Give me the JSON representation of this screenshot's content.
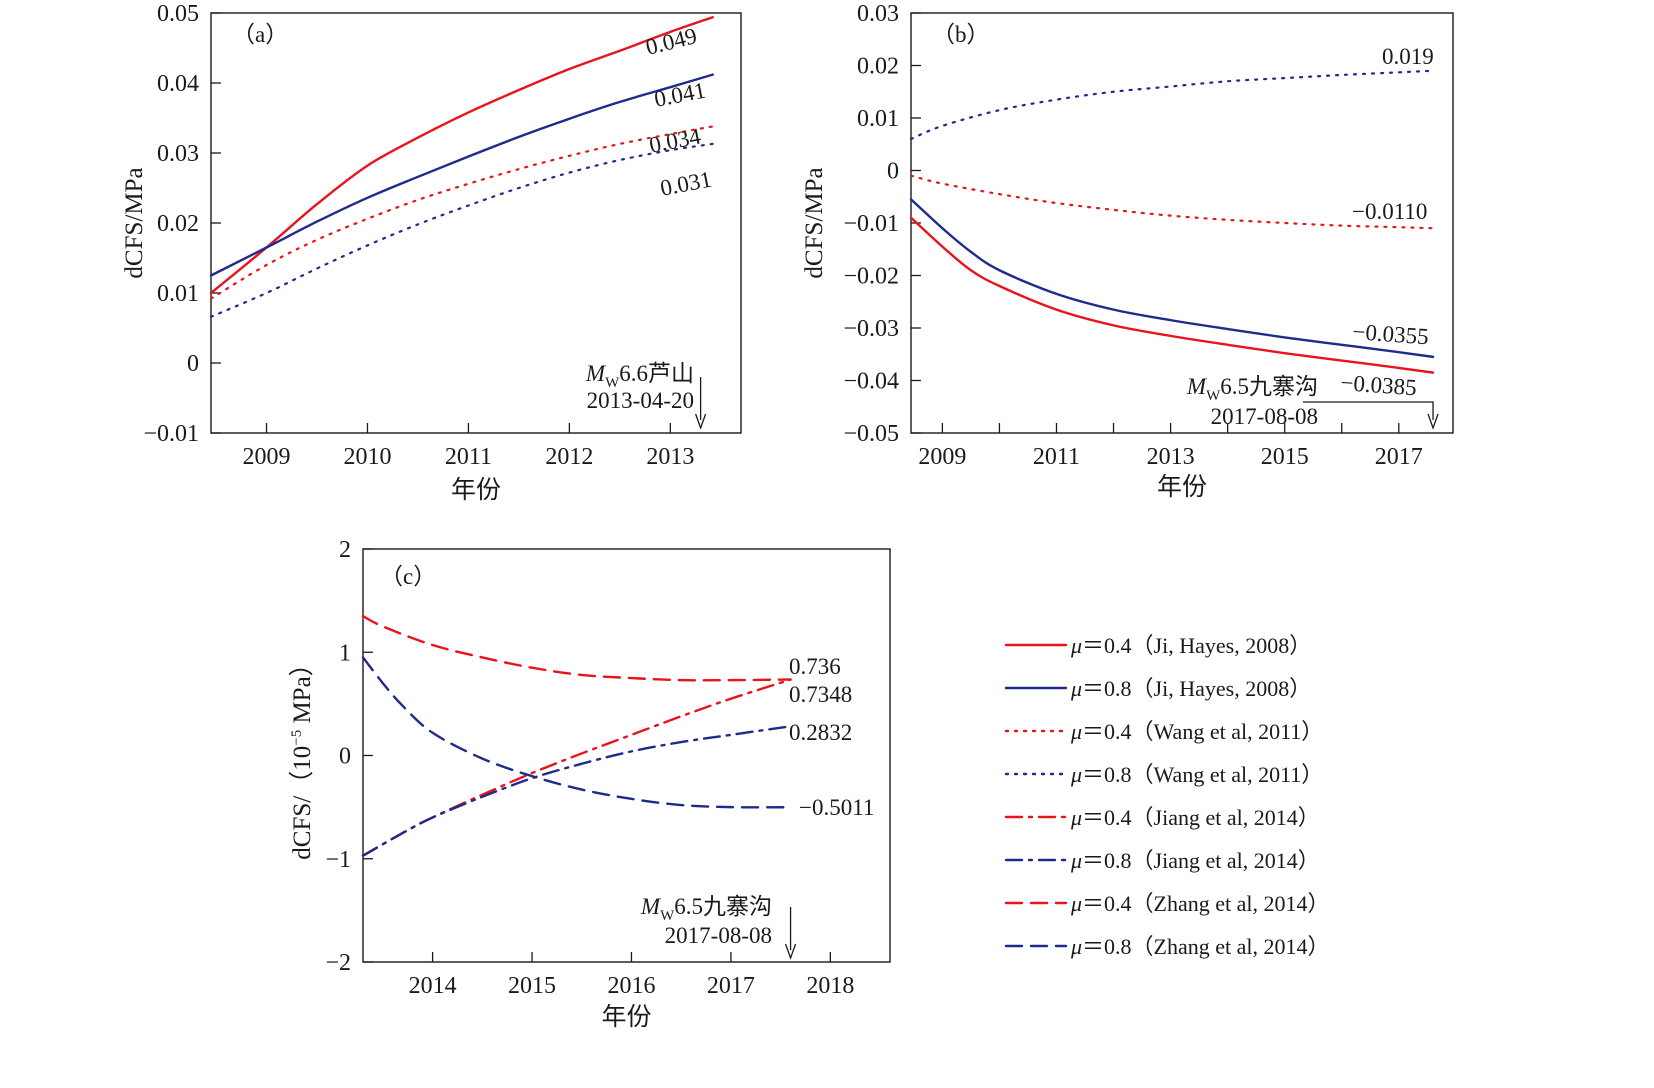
{
  "colors": {
    "red": "#e8141c",
    "blue": "#1e2b8c",
    "ink": "#1a1a1a"
  },
  "chart_data": [
    {
      "id": "a",
      "type": "line",
      "panel_label": "（a）",
      "xlabel": "年份",
      "ylabel": "dCFS/MPa",
      "xlim": [
        2008.45,
        2013.7
      ],
      "ylim": [
        -0.01,
        0.05
      ],
      "xticks": [
        2009,
        2010,
        2011,
        2012,
        2013
      ],
      "xtick_labels": [
        "2009",
        "2010",
        "2011",
        "2012",
        "2013"
      ],
      "yticks": [
        -0.01,
        0,
        0.01,
        0.02,
        0.03,
        0.04,
        0.05
      ],
      "ytick_labels": [
        "−0.01",
        "0",
        "0.01",
        "0.02",
        "0.03",
        "0.04",
        "0.05"
      ],
      "series": [
        {
          "key": "ji04",
          "color": "red",
          "dash": "solid",
          "x": [
            2008.45,
            2009.0,
            2009.5,
            2010.0,
            2010.5,
            2011.0,
            2011.5,
            2012.0,
            2012.5,
            2013.0,
            2013.42
          ],
          "y": [
            0.01,
            0.0165,
            0.0227,
            0.0282,
            0.0322,
            0.0358,
            0.039,
            0.042,
            0.0446,
            0.0473,
            0.0494
          ],
          "end_label": "0.049"
        },
        {
          "key": "ji08",
          "color": "blue",
          "dash": "solid",
          "x": [
            2008.45,
            2009.0,
            2009.5,
            2010.0,
            2010.5,
            2011.0,
            2011.5,
            2012.0,
            2012.5,
            2013.0,
            2013.42
          ],
          "y": [
            0.0125,
            0.0165,
            0.0202,
            0.0236,
            0.0266,
            0.0295,
            0.0323,
            0.0349,
            0.0373,
            0.0394,
            0.0412
          ],
          "end_label": "0.041"
        },
        {
          "key": "wang04",
          "color": "red",
          "dash": "dotted",
          "x": [
            2008.45,
            2009.0,
            2009.5,
            2010.0,
            2010.5,
            2011.0,
            2011.5,
            2012.0,
            2012.5,
            2013.0,
            2013.42
          ],
          "y": [
            0.0092,
            0.014,
            0.0176,
            0.0206,
            0.0233,
            0.0256,
            0.0277,
            0.0296,
            0.0313,
            0.0327,
            0.0338
          ],
          "end_label": "0.034"
        },
        {
          "key": "wang08",
          "color": "blue",
          "dash": "dotted",
          "x": [
            2008.45,
            2009.0,
            2009.5,
            2010.0,
            2010.5,
            2011.0,
            2011.5,
            2012.0,
            2012.5,
            2013.0,
            2013.42
          ],
          "y": [
            0.0066,
            0.01,
            0.0135,
            0.0168,
            0.0198,
            0.0225,
            0.025,
            0.0272,
            0.029,
            0.0304,
            0.0313
          ],
          "end_label": "0.031"
        }
      ],
      "event": {
        "mag": "W",
        "label_rest": "6.6芦山",
        "date": "2013-04-20",
        "x": 2013.3
      }
    },
    {
      "id": "b",
      "type": "line",
      "panel_label": "（b）",
      "xlabel": "年份",
      "ylabel": "dCFS/MPa",
      "xlim": [
        2008.45,
        2017.95
      ],
      "ylim": [
        -0.05,
        0.03
      ],
      "xticks": [
        2009,
        2011,
        2013,
        2015,
        2017
      ],
      "xtick_labels": [
        "2009",
        "2011",
        "2013",
        "2015",
        "2017"
      ],
      "minor_xticks": [
        2010,
        2012,
        2014,
        2016
      ],
      "yticks": [
        -0.05,
        -0.04,
        -0.03,
        -0.02,
        -0.01,
        0,
        0.01,
        0.02,
        0.03
      ],
      "ytick_labels": [
        "−0.05",
        "−0.04",
        "−0.03",
        "−0.02",
        "−0.01",
        "0",
        "0.01",
        "0.02",
        "0.03"
      ],
      "series": [
        {
          "key": "wang08",
          "color": "blue",
          "dash": "dotted",
          "x": [
            2008.45,
            2009.0,
            2010.0,
            2011.0,
            2012.0,
            2013.0,
            2014.0,
            2015.0,
            2016.0,
            2017.0,
            2017.6
          ],
          "y": [
            0.006,
            0.0085,
            0.0115,
            0.0135,
            0.015,
            0.016,
            0.017,
            0.0176,
            0.0182,
            0.0187,
            0.019
          ],
          "end_label": "0.019"
        },
        {
          "key": "wang04",
          "color": "red",
          "dash": "dotted",
          "x": [
            2008.45,
            2009.0,
            2010.0,
            2011.0,
            2012.0,
            2013.0,
            2014.0,
            2015.0,
            2016.0,
            2017.0,
            2017.6
          ],
          "y": [
            -0.001,
            -0.0025,
            -0.0045,
            -0.0062,
            -0.0075,
            -0.0086,
            -0.0094,
            -0.01,
            -0.0105,
            -0.0108,
            -0.011
          ],
          "end_label": "−0.0110"
        },
        {
          "key": "ji08",
          "color": "blue",
          "dash": "solid",
          "x": [
            2008.45,
            2009.0,
            2009.5,
            2010.0,
            2011.0,
            2012.0,
            2013.0,
            2014.0,
            2015.0,
            2016.0,
            2017.0,
            2017.6
          ],
          "y": [
            -0.0055,
            -0.011,
            -0.0155,
            -0.019,
            -0.0235,
            -0.0265,
            -0.0285,
            -0.0302,
            -0.0318,
            -0.0332,
            -0.0346,
            -0.0355
          ],
          "end_label": "−0.0355"
        },
        {
          "key": "ji04",
          "color": "red",
          "dash": "solid",
          "x": [
            2008.45,
            2009.0,
            2009.5,
            2010.0,
            2011.0,
            2012.0,
            2013.0,
            2014.0,
            2015.0,
            2016.0,
            2017.0,
            2017.6
          ],
          "y": [
            -0.009,
            -0.0145,
            -0.019,
            -0.022,
            -0.0265,
            -0.0295,
            -0.0315,
            -0.0332,
            -0.0348,
            -0.0362,
            -0.0376,
            -0.0385
          ],
          "end_label": "−0.0385"
        }
      ],
      "event": {
        "mag": "W",
        "label_rest": "6.5九寨沟",
        "date": "2017-08-08",
        "x": 2017.6
      }
    },
    {
      "id": "c",
      "type": "line",
      "panel_label": "（c）",
      "xlabel": "年份",
      "ylabel_main": "dCFS/（10",
      "ylabel_exp": "−5",
      "ylabel_tail": " MPa）",
      "xlim": [
        2013.3,
        2018.6
      ],
      "ylim": [
        -2,
        2
      ],
      "xticks": [
        2014,
        2015,
        2016,
        2017,
        2018
      ],
      "xtick_labels": [
        "2014",
        "2015",
        "2016",
        "2017",
        "2018"
      ],
      "yticks": [
        -2,
        -1,
        0,
        1,
        2
      ],
      "ytick_labels": [
        "−2",
        "−1",
        "0",
        "1",
        "2"
      ],
      "series": [
        {
          "key": "zhang04",
          "color": "red",
          "dash": "dashed",
          "x": [
            2013.3,
            2013.5,
            2014.0,
            2014.5,
            2015.0,
            2015.5,
            2016.0,
            2016.5,
            2017.0,
            2017.6
          ],
          "y": [
            1.35,
            1.25,
            1.07,
            0.95,
            0.85,
            0.78,
            0.75,
            0.73,
            0.73,
            0.736
          ],
          "end_label": "0.736"
        },
        {
          "key": "jiang04",
          "color": "red",
          "dash": "dashdot",
          "x": [
            2013.3,
            2013.7,
            2014.0,
            2014.5,
            2015.0,
            2015.5,
            2016.0,
            2016.5,
            2017.0,
            2017.6
          ],
          "y": [
            -0.97,
            -0.75,
            -0.6,
            -0.38,
            -0.17,
            0.02,
            0.2,
            0.38,
            0.55,
            0.7348
          ],
          "end_label": "0.7348"
        },
        {
          "key": "jiang08",
          "color": "blue",
          "dash": "dashdot",
          "x": [
            2013.3,
            2013.7,
            2014.0,
            2014.5,
            2015.0,
            2015.5,
            2016.0,
            2016.5,
            2017.0,
            2017.6
          ],
          "y": [
            -0.97,
            -0.75,
            -0.6,
            -0.4,
            -0.22,
            -0.08,
            0.04,
            0.13,
            0.2,
            0.2832
          ],
          "end_label": "0.2832"
        },
        {
          "key": "zhang08",
          "color": "blue",
          "dash": "dashed",
          "x": [
            2013.3,
            2013.5,
            2013.7,
            2014.0,
            2014.5,
            2015.0,
            2015.5,
            2016.0,
            2016.5,
            2017.0,
            2017.6
          ],
          "y": [
            0.95,
            0.7,
            0.48,
            0.22,
            -0.03,
            -0.2,
            -0.33,
            -0.42,
            -0.48,
            -0.5,
            -0.5011
          ],
          "end_label": "−0.5011"
        }
      ],
      "event": {
        "mag": "W",
        "label_rest": "6.5九寨沟",
        "date": "2017-08-08",
        "x": 2017.6
      }
    }
  ],
  "legend": [
    {
      "key": "ji04",
      "color": "red",
      "dash": "solid",
      "mu": "μ",
      "text": "＝0.4（Ji, Hayes, 2008）"
    },
    {
      "key": "ji08",
      "color": "blue",
      "dash": "solid",
      "mu": "μ",
      "text": "＝0.8（Ji, Hayes, 2008）"
    },
    {
      "key": "wang04",
      "color": "red",
      "dash": "dotted",
      "mu": "μ",
      "text": "＝0.4（Wang et al, 2011）"
    },
    {
      "key": "wang08",
      "color": "blue",
      "dash": "dotted",
      "mu": "μ",
      "text": "＝0.8（Wang et al, 2011）"
    },
    {
      "key": "jiang04",
      "color": "red",
      "dash": "dashdot",
      "mu": "μ",
      "text": "＝0.4（Jiang et al, 2014）"
    },
    {
      "key": "jiang08",
      "color": "blue",
      "dash": "dashdot",
      "mu": "μ",
      "text": "＝0.8（Jiang et al, 2014）"
    },
    {
      "key": "zhang04",
      "color": "red",
      "dash": "dashed",
      "mu": "μ",
      "text": "＝0.4（Zhang et al, 2014）"
    },
    {
      "key": "zhang08",
      "color": "blue",
      "dash": "dashed",
      "mu": "μ",
      "text": "＝0.8（Zhang et al, 2014）"
    }
  ]
}
